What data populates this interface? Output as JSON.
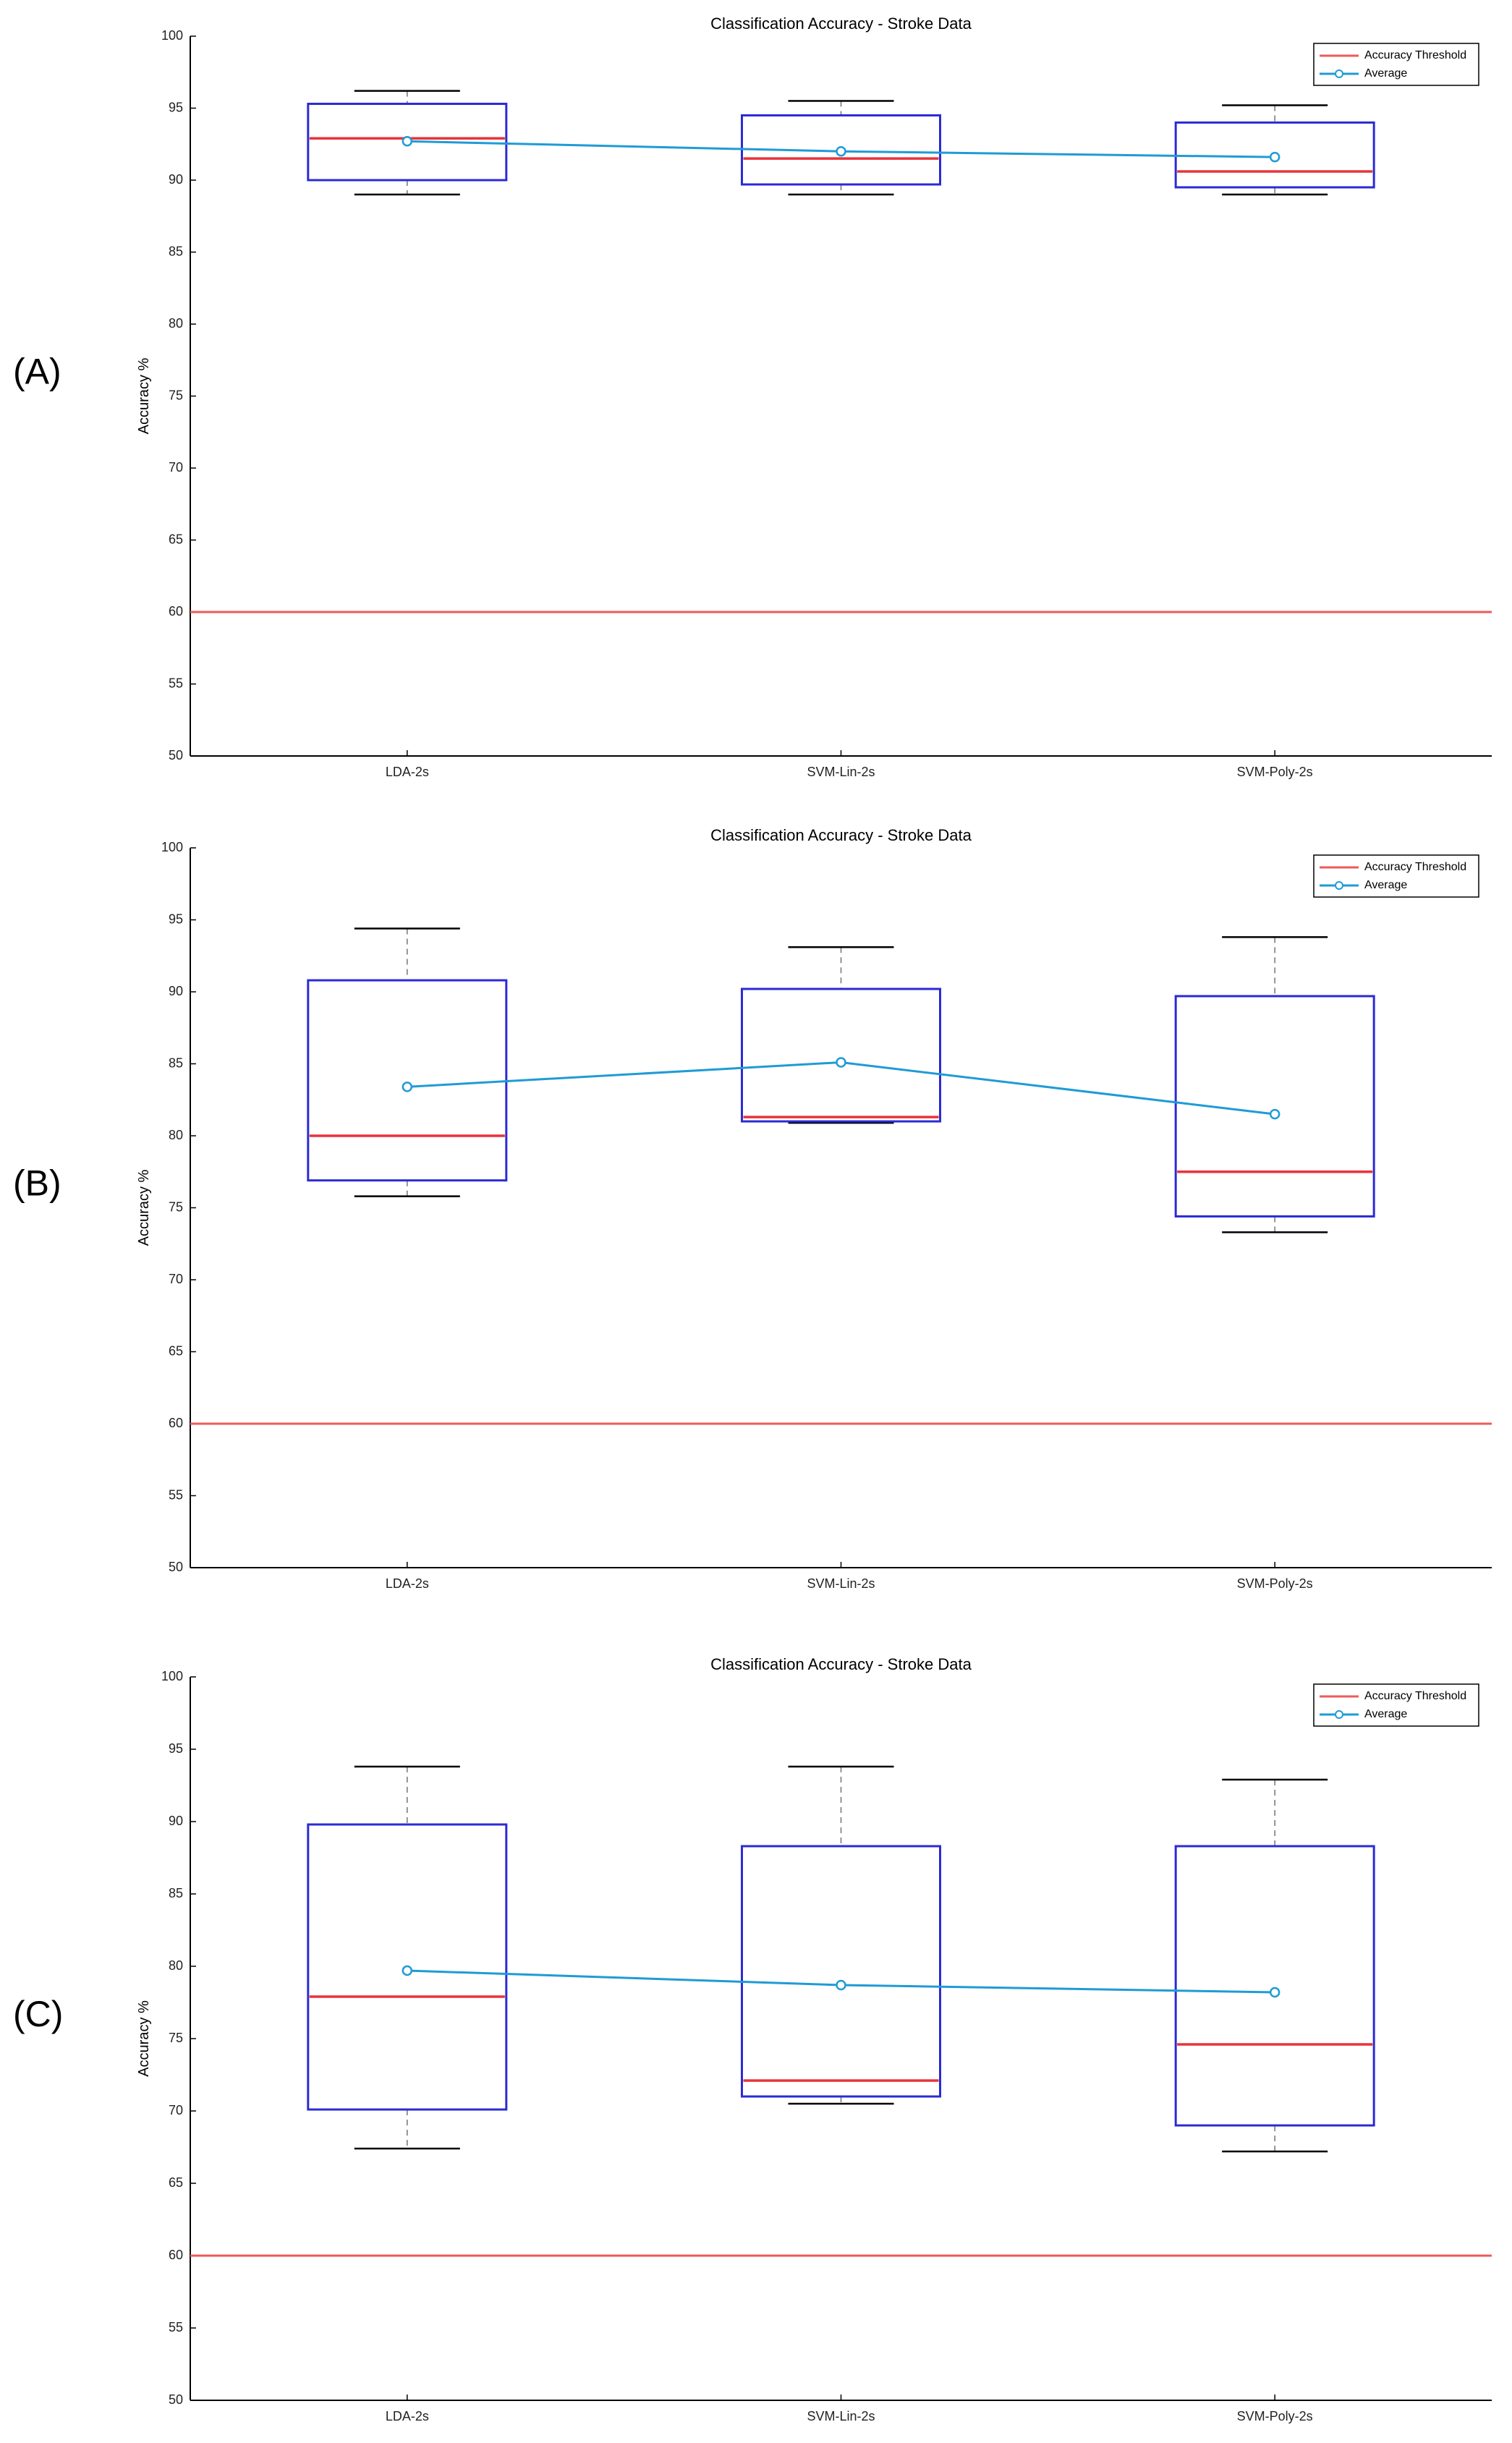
{
  "chart_data": [
    {
      "type": "box",
      "panel": "(A)",
      "title": "Classification Accuracy - Stroke Data",
      "ylabel": "Accuracy %",
      "xlabel": "",
      "ylim": [
        50,
        100
      ],
      "yticks": [
        50,
        55,
        60,
        65,
        70,
        75,
        80,
        85,
        90,
        95,
        100
      ],
      "categories": [
        "LDA-2s",
        "SVM-Lin-2s",
        "SVM-Poly-2s"
      ],
      "boxes": [
        {
          "category": "LDA-2s",
          "min": 89.0,
          "q1": 90.0,
          "median": 92.9,
          "q3": 95.3,
          "max": 96.2
        },
        {
          "category": "SVM-Lin-2s",
          "min": 89.0,
          "q1": 89.7,
          "median": 91.5,
          "q3": 94.5,
          "max": 95.5
        },
        {
          "category": "SVM-Poly-2s",
          "min": 89.0,
          "q1": 89.5,
          "median": 90.6,
          "q3": 94.0,
          "max": 95.2
        }
      ],
      "average": {
        "name": "Average",
        "values": [
          92.7,
          92.0,
          91.6
        ]
      },
      "threshold": {
        "name": "Accuracy Threshold",
        "value": 60
      },
      "legend_position": "top-right",
      "grid": false
    },
    {
      "type": "box",
      "panel": "(B)",
      "title": "Classification Accuracy - Stroke Data",
      "ylabel": "Accuracy %",
      "xlabel": "",
      "ylim": [
        50,
        100
      ],
      "yticks": [
        50,
        55,
        60,
        65,
        70,
        75,
        80,
        85,
        90,
        95,
        100
      ],
      "categories": [
        "LDA-2s",
        "SVM-Lin-2s",
        "SVM-Poly-2s"
      ],
      "boxes": [
        {
          "category": "LDA-2s",
          "min": 75.8,
          "q1": 76.9,
          "median": 80.0,
          "q3": 90.8,
          "max": 94.4
        },
        {
          "category": "SVM-Lin-2s",
          "min": 80.9,
          "q1": 81.0,
          "median": 81.3,
          "q3": 90.2,
          "max": 93.1
        },
        {
          "category": "SVM-Poly-2s",
          "min": 73.3,
          "q1": 74.4,
          "median": 77.5,
          "q3": 89.7,
          "max": 93.8
        }
      ],
      "average": {
        "name": "Average",
        "values": [
          83.4,
          85.1,
          81.5
        ]
      },
      "threshold": {
        "name": "Accuracy Threshold",
        "value": 60
      },
      "legend_position": "top-right",
      "grid": false
    },
    {
      "type": "box",
      "panel": "(C)",
      "title": "Classification Accuracy - Stroke Data",
      "ylabel": "Accuracy %",
      "xlabel": "",
      "ylim": [
        50,
        100
      ],
      "yticks": [
        50,
        55,
        60,
        65,
        70,
        75,
        80,
        85,
        90,
        95,
        100
      ],
      "categories": [
        "LDA-2s",
        "SVM-Lin-2s",
        "SVM-Poly-2s"
      ],
      "boxes": [
        {
          "category": "LDA-2s",
          "min": 67.4,
          "q1": 70.1,
          "median": 77.9,
          "q3": 89.8,
          "max": 93.8
        },
        {
          "category": "SVM-Lin-2s",
          "min": 70.5,
          "q1": 71.0,
          "median": 72.1,
          "q3": 88.3,
          "max": 93.8
        },
        {
          "category": "SVM-Poly-2s",
          "min": 67.2,
          "q1": 69.0,
          "median": 74.6,
          "q3": 88.3,
          "max": 92.9
        }
      ],
      "average": {
        "name": "Average",
        "values": [
          79.7,
          78.7,
          78.2
        ]
      },
      "threshold": {
        "name": "Accuracy Threshold",
        "value": 60
      },
      "legend_position": "top-right",
      "grid": false
    }
  ],
  "colors": {
    "box_outline": "#2b2bd6",
    "median": "#e8333a",
    "whisker_cap": "#000000",
    "whisker_dash": "#888888",
    "average_line": "#1f9bd6",
    "threshold_line": "#ef5a5a",
    "axis": "#000000"
  },
  "icons": {
    "legend_threshold_swatch": "red-line-swatch-icon",
    "legend_average_swatch": "blue-line-circle-marker-icon"
  }
}
